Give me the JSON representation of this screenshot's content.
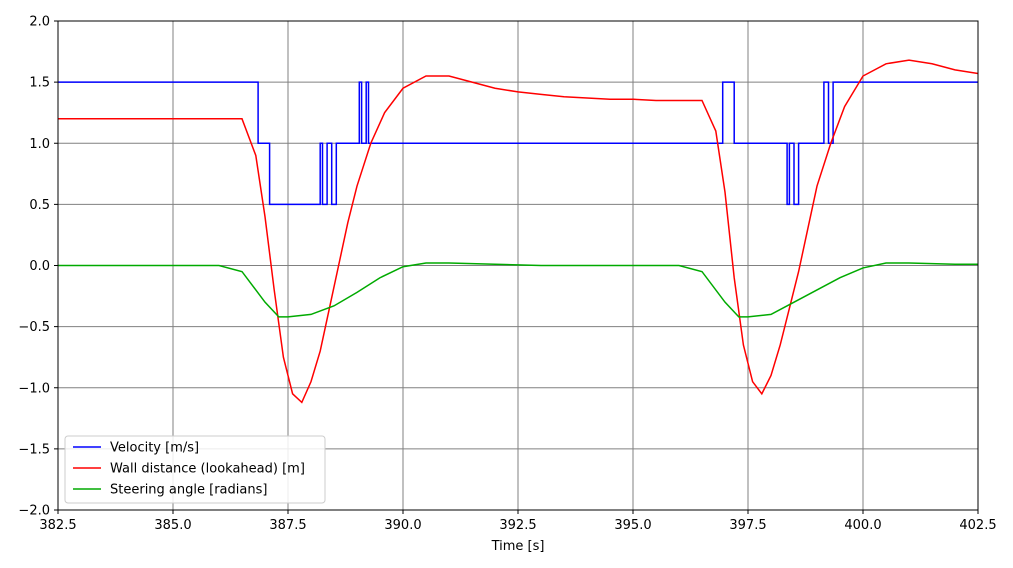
{
  "chart_data": {
    "type": "line",
    "title": "",
    "xlabel": "Time [s]",
    "ylabel": "",
    "xlim": [
      382.5,
      402.5
    ],
    "ylim": [
      -2.0,
      2.0
    ],
    "grid": true,
    "legend_position": "lower-left",
    "x_ticks": [
      382.5,
      385.0,
      387.5,
      390.0,
      392.5,
      395.0,
      397.5,
      400.0,
      402.5
    ],
    "x_tick_labels": [
      "382.5",
      "385.0",
      "387.5",
      "390.0",
      "392.5",
      "395.0",
      "397.5",
      "400.0",
      "402.5"
    ],
    "y_ticks": [
      -2.0,
      -1.5,
      -1.0,
      -0.5,
      0.0,
      0.5,
      1.0,
      1.5,
      2.0
    ],
    "y_tick_labels": [
      "−2.0",
      "−1.5",
      "−1.0",
      "−0.5",
      "0.0",
      "0.5",
      "1.0",
      "1.5",
      "2.0"
    ],
    "series": [
      {
        "name": "Velocity [m/s]",
        "color": "#0000ff",
        "style": "step",
        "x": [
          382.5,
          386.85,
          386.85,
          387.1,
          387.1,
          388.2,
          388.2,
          388.25,
          388.25,
          388.35,
          388.35,
          388.45,
          388.45,
          388.55,
          388.55,
          389.05,
          389.05,
          389.1,
          389.1,
          389.2,
          389.2,
          389.25,
          389.25,
          396.95,
          396.95,
          397.2,
          397.2,
          398.35,
          398.35,
          398.4,
          398.4,
          398.5,
          398.5,
          398.6,
          398.6,
          399.15,
          399.15,
          399.25,
          399.25,
          399.35,
          399.35,
          402.5
        ],
        "y": [
          1.5,
          1.5,
          1.0,
          1.0,
          0.5,
          0.5,
          1.0,
          1.0,
          0.5,
          0.5,
          1.0,
          1.0,
          0.5,
          0.5,
          1.0,
          1.0,
          1.5,
          1.5,
          1.0,
          1.0,
          1.5,
          1.5,
          1.0,
          1.0,
          1.5,
          1.5,
          1.0,
          1.0,
          0.5,
          0.5,
          1.0,
          1.0,
          0.5,
          0.5,
          1.0,
          1.0,
          1.5,
          1.5,
          1.0,
          1.0,
          1.5,
          1.5
        ]
      },
      {
        "name": "Wall distance (lookahead) [m]",
        "color": "#ff0000",
        "style": "line",
        "x": [
          382.5,
          383.0,
          384.0,
          385.0,
          386.0,
          386.5,
          386.8,
          387.0,
          387.2,
          387.4,
          387.6,
          387.8,
          388.0,
          388.2,
          388.4,
          388.6,
          388.8,
          389.0,
          389.3,
          389.6,
          390.0,
          390.5,
          391.0,
          391.5,
          392.0,
          392.5,
          393.0,
          393.5,
          394.0,
          394.5,
          395.0,
          395.5,
          396.0,
          396.5,
          396.8,
          397.0,
          397.2,
          397.4,
          397.6,
          397.8,
          398.0,
          398.2,
          398.4,
          398.6,
          398.8,
          399.0,
          399.3,
          399.6,
          400.0,
          400.5,
          401.0,
          401.5,
          402.0,
          402.5
        ],
        "y": [
          1.2,
          1.2,
          1.2,
          1.2,
          1.2,
          1.2,
          0.9,
          0.4,
          -0.2,
          -0.75,
          -1.05,
          -1.12,
          -0.95,
          -0.7,
          -0.35,
          0.0,
          0.35,
          0.65,
          1.0,
          1.25,
          1.45,
          1.55,
          1.55,
          1.5,
          1.45,
          1.42,
          1.4,
          1.38,
          1.37,
          1.36,
          1.36,
          1.35,
          1.35,
          1.35,
          1.1,
          0.6,
          -0.1,
          -0.65,
          -0.95,
          -1.05,
          -0.9,
          -0.65,
          -0.35,
          -0.05,
          0.3,
          0.65,
          1.0,
          1.3,
          1.55,
          1.65,
          1.68,
          1.65,
          1.6,
          1.57
        ]
      },
      {
        "name": "Steering angle [radians]",
        "color": "#00aa00",
        "style": "line",
        "x": [
          382.5,
          384.0,
          386.0,
          386.5,
          387.0,
          387.3,
          387.5,
          388.0,
          388.5,
          389.0,
          389.5,
          390.0,
          390.5,
          391.0,
          392.0,
          393.0,
          394.0,
          395.0,
          396.0,
          396.5,
          397.0,
          397.3,
          397.5,
          398.0,
          398.5,
          399.0,
          399.5,
          400.0,
          400.5,
          401.0,
          402.0,
          402.5
        ],
        "y": [
          0.0,
          0.0,
          0.0,
          -0.05,
          -0.3,
          -0.42,
          -0.42,
          -0.4,
          -0.33,
          -0.22,
          -0.1,
          -0.01,
          0.02,
          0.02,
          0.01,
          0.0,
          0.0,
          0.0,
          0.0,
          -0.05,
          -0.3,
          -0.42,
          -0.42,
          -0.4,
          -0.3,
          -0.2,
          -0.1,
          -0.02,
          0.02,
          0.02,
          0.01,
          0.01
        ]
      }
    ]
  }
}
